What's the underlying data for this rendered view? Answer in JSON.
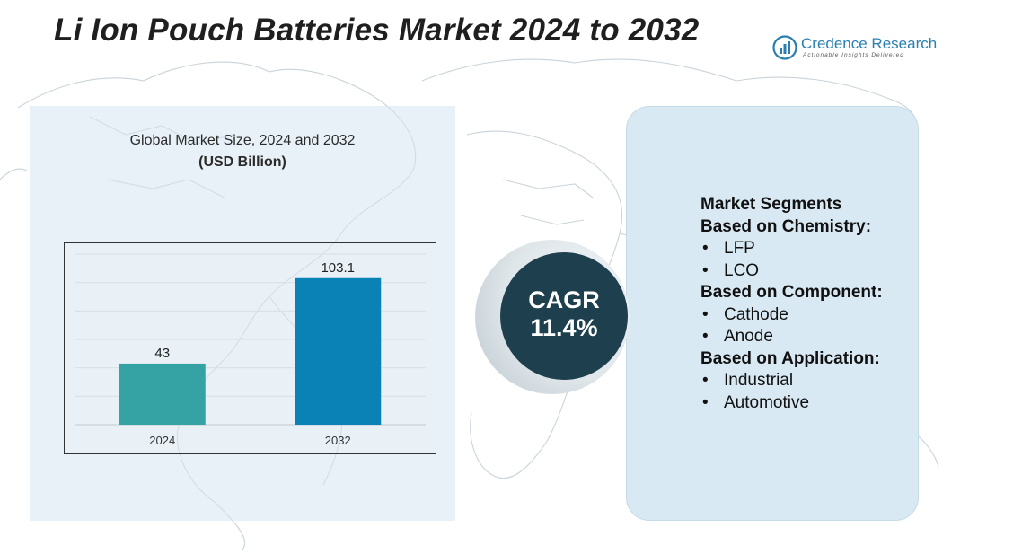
{
  "title": "Li Ion Pouch Batteries Market 2024 to 2032",
  "logo": {
    "name": "Credence Research",
    "tagline": "Actionable Insights Delivered",
    "icon": "bar-chart-logo-icon"
  },
  "chart_data": {
    "type": "bar",
    "title": "Global Market Size, 2024 and 2032",
    "subtitle": "(USD Billion)",
    "categories": [
      "2024",
      "2032"
    ],
    "values": [
      43,
      103.1
    ],
    "value_labels": [
      "43",
      "103.1"
    ],
    "colors": [
      "#35a3a3",
      "#0a82b5"
    ],
    "ylim": [
      0,
      120
    ],
    "grid": true,
    "legend": "none"
  },
  "cagr": {
    "label": "CAGR",
    "value": "11.4%"
  },
  "segments": {
    "heading": "Market Segments",
    "groups": [
      {
        "title": "Based on Chemistry:",
        "items": [
          "LFP",
          "LCO"
        ]
      },
      {
        "title": "Based on Component:",
        "items": [
          "Cathode",
          "Anode"
        ]
      },
      {
        "title": "Based on Application:",
        "items": [
          "Industrial",
          "Automotive"
        ]
      }
    ]
  },
  "colors": {
    "left_panel": "#d6e6f0",
    "right_panel": "#d8e9f3",
    "cagr_circle": "#1d3f4e",
    "brand": "#2a7fb0"
  }
}
